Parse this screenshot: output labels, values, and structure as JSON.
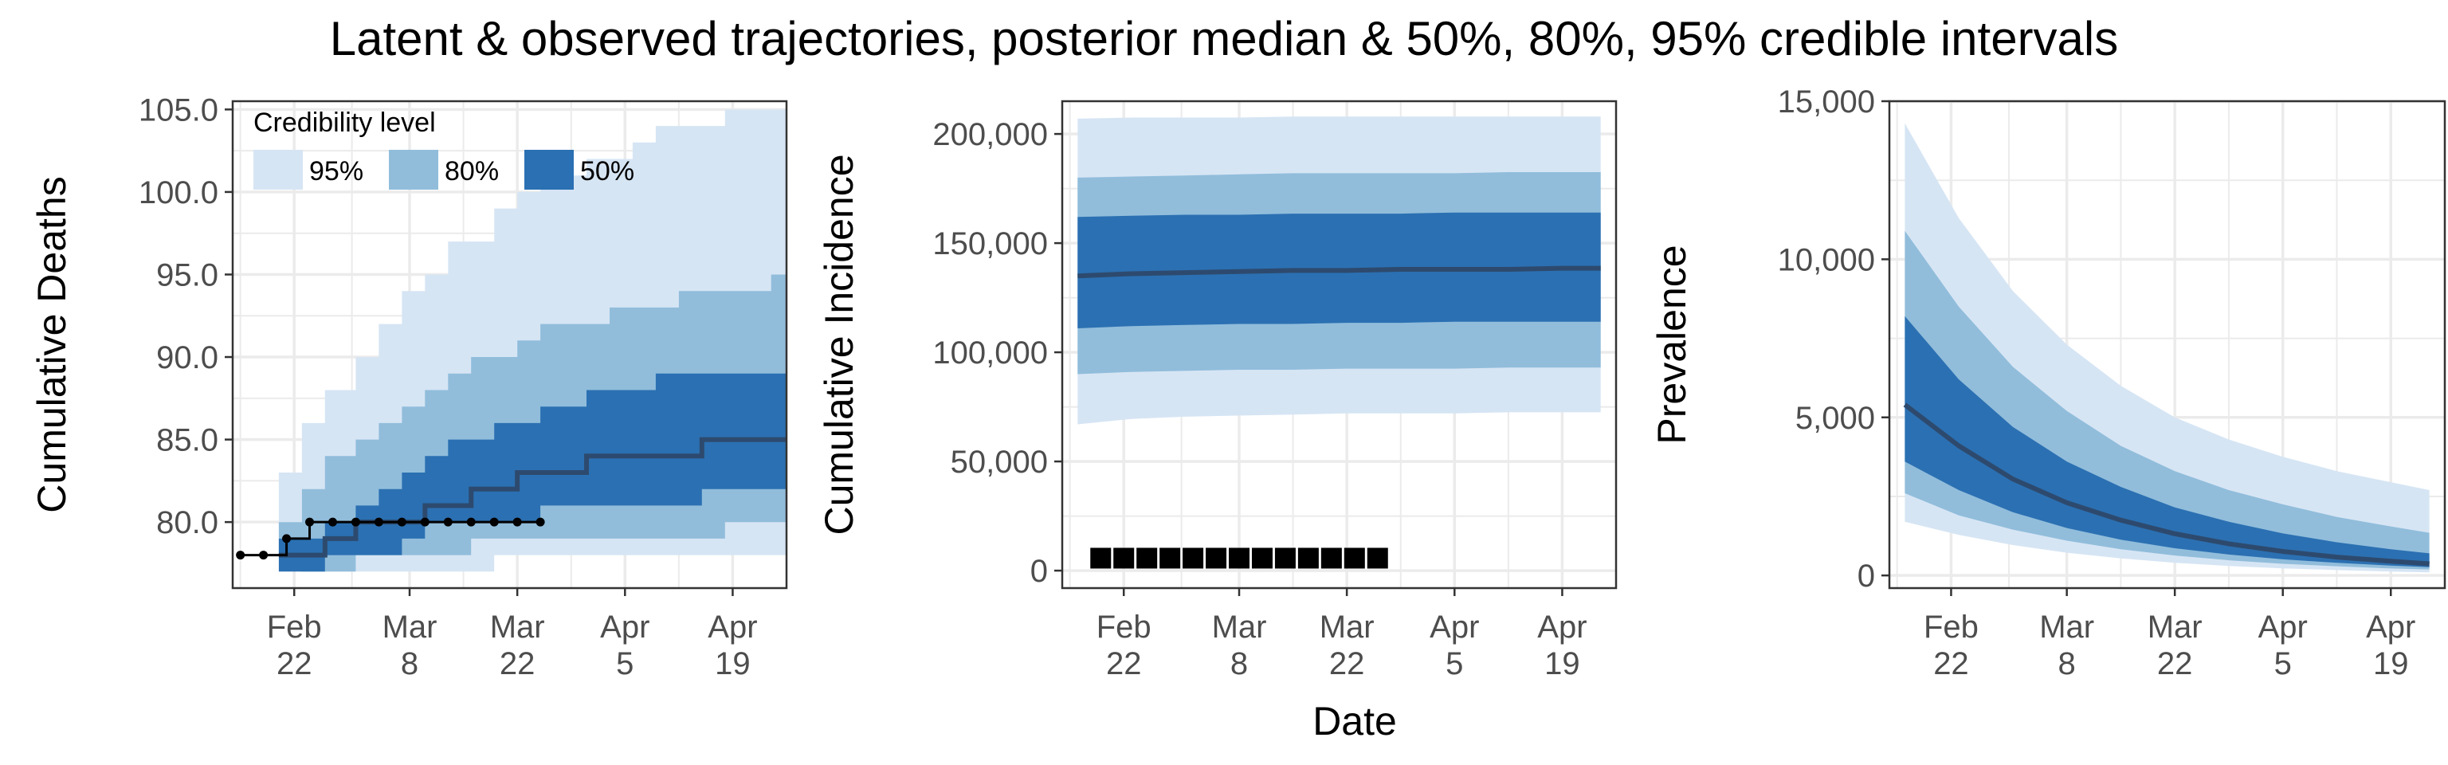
{
  "title": "Latent & observed trajectories, posterior median & 50%, 80%, 95% credible intervals",
  "colors": {
    "band_95": "#d6e5f4",
    "band_80": "#91bddb",
    "band_50": "#2b70b2",
    "median": "#2d4a6e",
    "observed": "#000000",
    "grid": "#ebebeb",
    "panel_border": "#333333"
  },
  "x_axis": {
    "title": "Date",
    "ticks": [
      {
        "date": "2020-02-22",
        "label": [
          "Feb",
          "22"
        ]
      },
      {
        "date": "2020-03-08",
        "label": [
          "Mar",
          "8"
        ]
      },
      {
        "date": "2020-03-22",
        "label": [
          "Mar",
          "22"
        ]
      },
      {
        "date": "2020-04-05",
        "label": [
          "Apr",
          "5"
        ]
      },
      {
        "date": "2020-04-19",
        "label": [
          "Apr",
          "19"
        ]
      }
    ]
  },
  "legend": {
    "title": "Credibility level",
    "items": [
      {
        "label": "95%",
        "color": "#d6e5f4"
      },
      {
        "label": "80%",
        "color": "#91bddb"
      },
      {
        "label": "50%",
        "color": "#2b70b2"
      }
    ],
    "placement": "top-left inside first panel"
  },
  "chart_data": [
    {
      "type": "area",
      "ylabel": "Cumulative Deaths",
      "xlim": [
        "2020-02-14",
        "2020-04-26"
      ],
      "ylim": [
        76,
        105.5
      ],
      "yticks": [
        80,
        85,
        90,
        95,
        100,
        105
      ],
      "ytick_labels": [
        "80.0",
        "85.0",
        "90.0",
        "95.0",
        "100.0",
        "105.0"
      ],
      "grid": true,
      "x": [
        "2020-02-20",
        "2020-02-23",
        "2020-02-26",
        "2020-03-01",
        "2020-03-04",
        "2020-03-07",
        "2020-03-10",
        "2020-03-13",
        "2020-03-16",
        "2020-03-19",
        "2020-03-22",
        "2020-03-25",
        "2020-03-28",
        "2020-03-31",
        "2020-04-03",
        "2020-04-06",
        "2020-04-09",
        "2020-04-12",
        "2020-04-15",
        "2020-04-18",
        "2020-04-21",
        "2020-04-24"
      ],
      "bands": {
        "95": {
          "lower": [
            78,
            77,
            77,
            77,
            77,
            77,
            77,
            77,
            77,
            78,
            78,
            78,
            78,
            78,
            78,
            78,
            78,
            78,
            78,
            78,
            78,
            78
          ],
          "upper": [
            83,
            86,
            88,
            90,
            92,
            94,
            95,
            97,
            97,
            99,
            100,
            101,
            101,
            102,
            102,
            103,
            104,
            104,
            104,
            105,
            105,
            105
          ]
        },
        "80": {
          "lower": [
            78,
            77,
            77,
            78,
            78,
            78,
            78,
            78,
            79,
            79,
            79,
            79,
            79,
            79,
            79,
            79,
            79,
            79,
            79,
            80,
            80,
            80
          ],
          "upper": [
            80,
            82,
            84,
            85,
            86,
            87,
            88,
            89,
            90,
            90,
            91,
            92,
            92,
            92,
            93,
            93,
            93,
            94,
            94,
            94,
            94,
            95
          ]
        },
        "50": {
          "lower": [
            77,
            77,
            78,
            78,
            78,
            79,
            80,
            80,
            80,
            80,
            80,
            81,
            81,
            81,
            81,
            81,
            81,
            81,
            82,
            82,
            82,
            82
          ],
          "upper": [
            79,
            79,
            80,
            81,
            82,
            83,
            84,
            85,
            85,
            86,
            86,
            87,
            87,
            88,
            88,
            88,
            89,
            89,
            89,
            89,
            89,
            89
          ]
        }
      },
      "median": [
        78,
        78,
        79,
        80,
        80,
        80,
        81,
        81,
        82,
        82,
        83,
        83,
        83,
        84,
        84,
        84,
        84,
        84,
        85,
        85,
        85,
        85
      ],
      "observed": {
        "x": [
          "2020-02-15",
          "2020-02-18",
          "2020-02-21",
          "2020-02-24",
          "2020-02-27",
          "2020-03-01",
          "2020-03-04",
          "2020-03-07",
          "2020-03-10",
          "2020-03-13",
          "2020-03-16",
          "2020-03-19",
          "2020-03-22",
          "2020-03-25"
        ],
        "y": [
          78,
          78,
          79,
          80,
          80,
          80,
          80,
          80,
          80,
          80,
          80,
          80,
          80,
          80
        ]
      }
    },
    {
      "type": "area",
      "ylabel": "Cumulative Incidence",
      "xlim": [
        "2020-02-14",
        "2020-04-26"
      ],
      "ylim": [
        -8000,
        215000
      ],
      "yticks": [
        0,
        50000,
        100000,
        150000,
        200000
      ],
      "ytick_labels": [
        "0",
        "50,000",
        "100,000",
        "150,000",
        "200,000"
      ],
      "grid": true,
      "x": [
        "2020-02-16",
        "2020-02-23",
        "2020-03-01",
        "2020-03-08",
        "2020-03-15",
        "2020-03-22",
        "2020-03-29",
        "2020-04-05",
        "2020-04-12",
        "2020-04-19",
        "2020-04-24"
      ],
      "bands": {
        "95": {
          "lower": [
            67000,
            69500,
            70500,
            71000,
            71500,
            72000,
            72000,
            72000,
            72500,
            72500,
            72500
          ],
          "upper": [
            207000,
            207500,
            207500,
            207500,
            208000,
            208000,
            208000,
            208000,
            208000,
            208000,
            208000
          ]
        },
        "80": {
          "lower": [
            90000,
            91000,
            91500,
            92000,
            92000,
            92500,
            92500,
            92500,
            93000,
            93000,
            93000
          ],
          "upper": [
            180000,
            180500,
            181000,
            181500,
            182000,
            182000,
            182000,
            182000,
            182500,
            182500,
            182500
          ]
        },
        "50": {
          "lower": [
            111000,
            112000,
            112500,
            113000,
            113000,
            113500,
            113500,
            114000,
            114000,
            114000,
            114000
          ],
          "upper": [
            162000,
            162500,
            163000,
            163000,
            163500,
            163500,
            163500,
            164000,
            164000,
            164000,
            164000
          ]
        }
      },
      "median": [
        135000,
        136000,
        136500,
        137000,
        137500,
        137500,
        138000,
        138000,
        138000,
        138500,
        138500
      ],
      "observed": {
        "x": [
          "2020-02-19",
          "2020-02-22",
          "2020-02-25",
          "2020-02-28",
          "2020-03-02",
          "2020-03-05",
          "2020-03-08",
          "2020-03-11",
          "2020-03-14",
          "2020-03-17",
          "2020-03-20",
          "2020-03-23",
          "2020-03-26"
        ],
        "y": [
          5700,
          5700,
          5700,
          5700,
          5700,
          5700,
          5700,
          5700,
          5700,
          5700,
          5700,
          5700,
          5700
        ]
      }
    },
    {
      "type": "area",
      "ylabel": "Prevalence",
      "xlim": [
        "2020-02-14",
        "2020-04-26"
      ],
      "ylim": [
        -400,
        15000
      ],
      "yticks": [
        0,
        5000,
        10000,
        15000
      ],
      "ytick_labels": [
        "0",
        "5,000",
        "10,000",
        "15,000"
      ],
      "grid": true,
      "x": [
        "2020-02-16",
        "2020-02-23",
        "2020-03-01",
        "2020-03-08",
        "2020-03-15",
        "2020-03-22",
        "2020-03-29",
        "2020-04-05",
        "2020-04-12",
        "2020-04-19",
        "2020-04-24"
      ],
      "bands": {
        "95": {
          "lower": [
            1700,
            1280,
            960,
            720,
            540,
            400,
            300,
            225,
            170,
            125,
            100
          ],
          "upper": [
            14300,
            11300,
            9000,
            7300,
            6000,
            5000,
            4300,
            3750,
            3300,
            2950,
            2700
          ]
        },
        "80": {
          "lower": [
            2600,
            1900,
            1450,
            1100,
            830,
            630,
            480,
            370,
            290,
            220,
            190
          ],
          "upper": [
            10900,
            8500,
            6600,
            5200,
            4100,
            3300,
            2700,
            2250,
            1850,
            1550,
            1350
          ]
        },
        "50": {
          "lower": [
            3600,
            2700,
            2000,
            1500,
            1130,
            860,
            660,
            510,
            400,
            310,
            260
          ],
          "upper": [
            8200,
            6200,
            4700,
            3600,
            2800,
            2150,
            1700,
            1330,
            1050,
            830,
            700
          ]
        }
      },
      "median": [
        5400,
        4100,
        3050,
        2300,
        1750,
        1320,
        1000,
        760,
        580,
        450,
        370
      ]
    }
  ]
}
